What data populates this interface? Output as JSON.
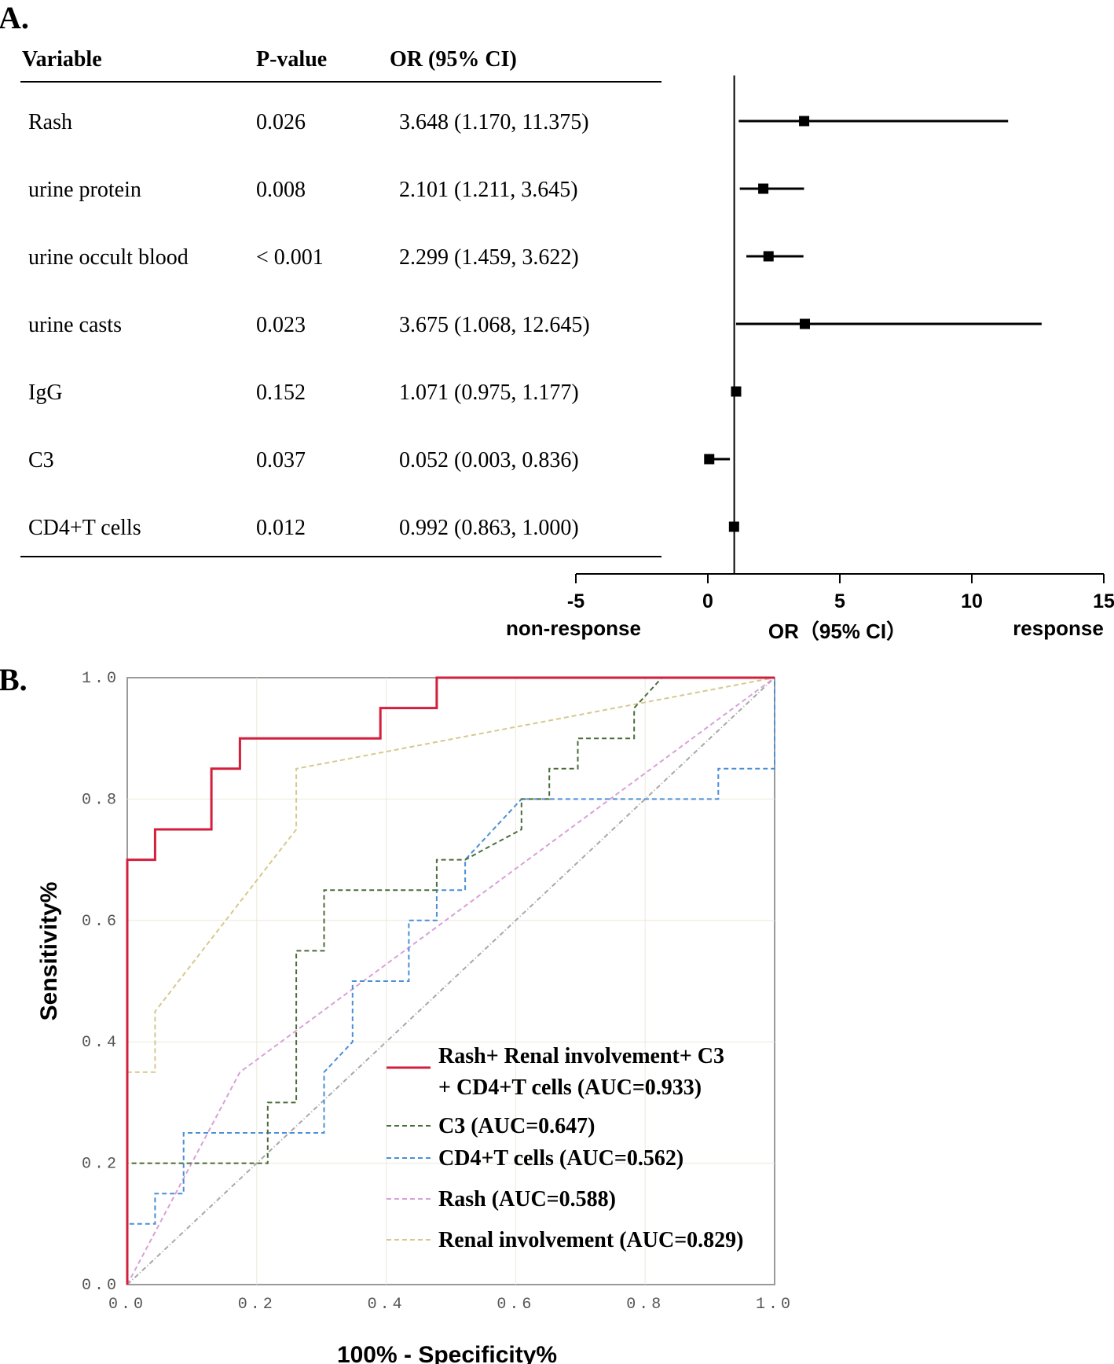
{
  "panel_a": {
    "label": "A.",
    "headers": {
      "variable": "Variable",
      "pvalue": "P-value",
      "or": "OR (95% CI)"
    },
    "axis_ticks": [
      "-5",
      "0",
      "5",
      "10",
      "15"
    ],
    "xlabel_left": "non-response",
    "xlabel_center": "OR（95% CI）",
    "xlabel_right": "response"
  },
  "panel_b": {
    "label": "B.",
    "xlabel": "100% - Specificity%",
    "ylabel": "Sensitivity%",
    "xticks": [
      "0.0",
      "0.2",
      "0.4",
      "0.6",
      "0.8",
      "1.0"
    ],
    "yticks": [
      "0.0",
      "0.2",
      "0.4",
      "0.6",
      "0.8",
      "1.0"
    ],
    "legend": [
      {
        "line1": "Rash+ Renal involvement+ C3",
        "line2": "+ CD4+T cells (AUC=0.933)"
      },
      {
        "line1": "C3 (AUC=0.647)"
      },
      {
        "line1": "CD4+T cells (AUC=0.562)"
      },
      {
        "line1": "Rash (AUC=0.588)"
      },
      {
        "line1": "Renal involvement (AUC=0.829)"
      }
    ]
  },
  "chart_data": [
    {
      "type": "forest",
      "title": "A.",
      "xlabel": "OR（95% CI）",
      "xlim": [
        -5,
        15
      ],
      "reference_line": 1,
      "rows": [
        {
          "variable": "Rash",
          "p_value": "0.026",
          "or_text": "3.648 (1.170, 11.375)",
          "or": 3.648,
          "lower": 1.17,
          "upper": 11.375
        },
        {
          "variable": "urine protein",
          "p_value": "0.008",
          "or_text": "2.101 (1.211, 3.645)",
          "or": 2.101,
          "lower": 1.211,
          "upper": 3.645
        },
        {
          "variable": "urine occult blood",
          "p_value": "< 0.001",
          "or_text": "2.299 (1.459, 3.622)",
          "or": 2.299,
          "lower": 1.459,
          "upper": 3.622
        },
        {
          "variable": "urine casts",
          "p_value": "0.023",
          "or_text": "3.675 (1.068, 12.645)",
          "or": 3.675,
          "lower": 1.068,
          "upper": 12.645
        },
        {
          "variable": "IgG",
          "p_value": "0.152",
          "or_text": "1.071 (0.975, 1.177)",
          "or": 1.071,
          "lower": 0.975,
          "upper": 1.177
        },
        {
          "variable": "C3",
          "p_value": "0.037",
          "or_text": "0.052 (0.003, 0.836)",
          "or": 0.052,
          "lower": 0.003,
          "upper": 0.836
        },
        {
          "variable": "CD4+T cells",
          "p_value": "0.012",
          "or_text": "0.992 (0.863, 1.000)",
          "or": 0.992,
          "lower": 0.863,
          "upper": 1.0
        }
      ]
    },
    {
      "type": "line",
      "title": "B.",
      "xlabel": "100% - Specificity%",
      "ylabel": "Sensitivity%",
      "xlim": [
        0,
        1
      ],
      "ylim": [
        0,
        1
      ],
      "grid": true,
      "series": [
        {
          "name": "Rash+ Renal involvement+ C3 + CD4+T cells (AUC=0.933)",
          "color": "#d21f3c",
          "style": "solid",
          "points": [
            [
              0,
              0
            ],
            [
              0,
              0.7
            ],
            [
              0.043,
              0.7
            ],
            [
              0.043,
              0.75
            ],
            [
              0.13,
              0.75
            ],
            [
              0.13,
              0.85
            ],
            [
              0.174,
              0.85
            ],
            [
              0.174,
              0.9
            ],
            [
              0.391,
              0.9
            ],
            [
              0.391,
              0.95
            ],
            [
              0.478,
              0.95
            ],
            [
              0.478,
              1.0
            ],
            [
              1,
              1
            ]
          ]
        },
        {
          "name": "C3 (AUC=0.647)",
          "color": "#4a6b3a",
          "style": "dashed",
          "points": [
            [
              0,
              0
            ],
            [
              0,
              0.2
            ],
            [
              0.087,
              0.2
            ],
            [
              0.217,
              0.2
            ],
            [
              0.217,
              0.3
            ],
            [
              0.261,
              0.3
            ],
            [
              0.261,
              0.55
            ],
            [
              0.304,
              0.55
            ],
            [
              0.304,
              0.65
            ],
            [
              0.478,
              0.65
            ],
            [
              0.478,
              0.7
            ],
            [
              0.522,
              0.7
            ],
            [
              0.565,
              0.725
            ],
            [
              0.609,
              0.75
            ],
            [
              0.609,
              0.8
            ],
            [
              0.652,
              0.8
            ],
            [
              0.652,
              0.85
            ],
            [
              0.696,
              0.85
            ],
            [
              0.696,
              0.9
            ],
            [
              0.783,
              0.9
            ],
            [
              0.783,
              0.95
            ],
            [
              0.826,
              1.0
            ],
            [
              1,
              1
            ]
          ]
        },
        {
          "name": "CD4+T cells (AUC=0.562)",
          "color": "#4a8fd6",
          "style": "dashed",
          "points": [
            [
              0,
              0
            ],
            [
              0,
              0.1
            ],
            [
              0.043,
              0.1
            ],
            [
              0.043,
              0.15
            ],
            [
              0.087,
              0.15
            ],
            [
              0.087,
              0.25
            ],
            [
              0.304,
              0.25
            ],
            [
              0.304,
              0.35
            ],
            [
              0.348,
              0.4
            ],
            [
              0.348,
              0.5
            ],
            [
              0.435,
              0.5
            ],
            [
              0.435,
              0.6
            ],
            [
              0.478,
              0.6
            ],
            [
              0.478,
              0.65
            ],
            [
              0.522,
              0.65
            ],
            [
              0.522,
              0.7
            ],
            [
              0.609,
              0.8
            ],
            [
              0.913,
              0.8
            ],
            [
              0.913,
              0.85
            ],
            [
              1,
              0.85
            ],
            [
              1,
              1
            ]
          ]
        },
        {
          "name": "Rash (AUC=0.588)",
          "color": "#d9a0d9",
          "style": "dashed",
          "points": [
            [
              0,
              0
            ],
            [
              0.174,
              0.35
            ],
            [
              1,
              1
            ]
          ]
        },
        {
          "name": "Renal involvement (AUC=0.829)",
          "color": "#d6c98e",
          "style": "dashed",
          "points": [
            [
              0,
              0
            ],
            [
              0,
              0.35
            ],
            [
              0.043,
              0.35
            ],
            [
              0.043,
              0.45
            ],
            [
              0.261,
              0.75
            ],
            [
              0.261,
              0.85
            ],
            [
              1,
              1
            ]
          ]
        },
        {
          "name": "Reference",
          "color": "#a8a8a8",
          "style": "dashdot",
          "points": [
            [
              0,
              0
            ],
            [
              1,
              1
            ]
          ]
        }
      ]
    }
  ]
}
